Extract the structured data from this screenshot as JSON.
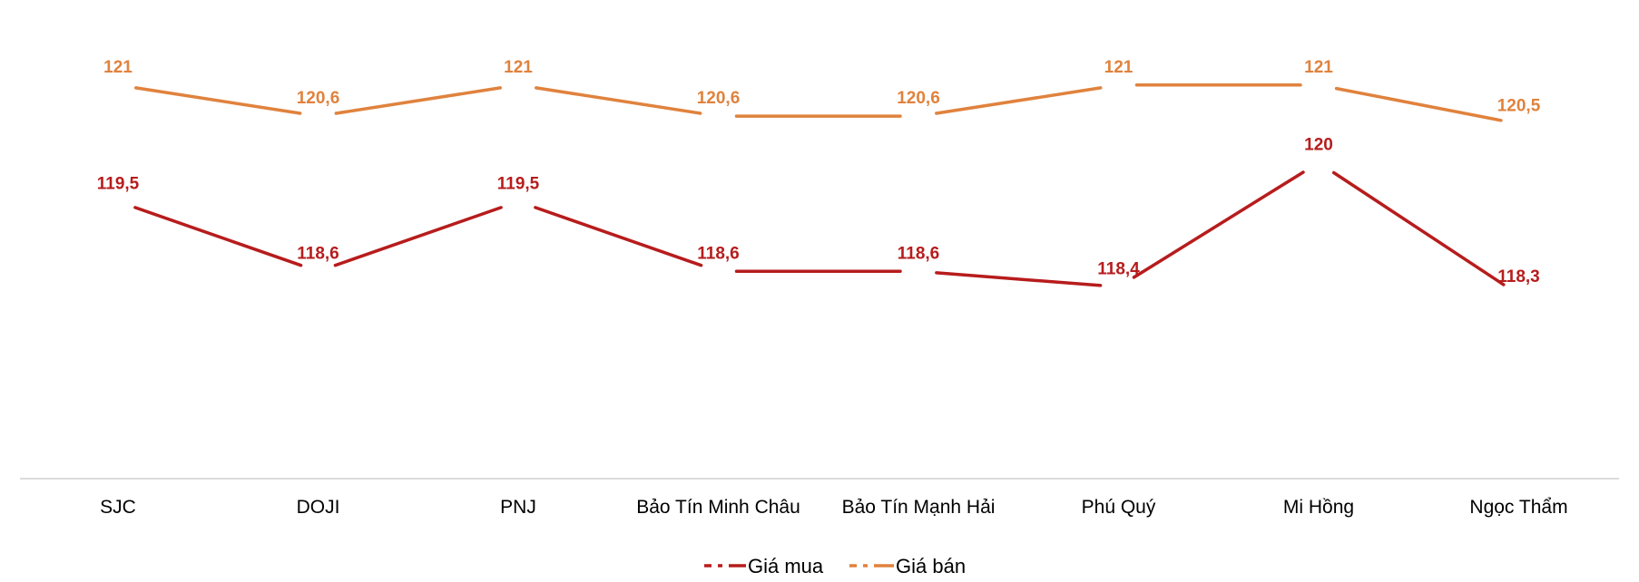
{
  "chart_data": {
    "type": "line",
    "title": "",
    "xlabel": "",
    "ylabel": "",
    "ylim": [
      116,
      121.5
    ],
    "grid": false,
    "legend_position": "bottom",
    "categories": [
      "SJC",
      "DOJI",
      "PNJ",
      "Bảo Tín Minh Châu",
      "Bảo Tín Mạnh Hải",
      "Phú Quý",
      "Mi Hồng",
      "Ngọc Thẩm"
    ],
    "series": [
      {
        "name": "Giá mua",
        "color": "#b71c1c",
        "values": [
          119.5,
          118.6,
          119.5,
          118.6,
          118.6,
          118.4,
          120,
          118.3
        ],
        "labels": [
          "119,5",
          "118,6",
          "119,5",
          "118,6",
          "118,6",
          "118,4",
          "120",
          "118,3"
        ]
      },
      {
        "name": "Giá bán",
        "color": "#e0823d",
        "values": [
          121,
          120.6,
          121,
          120.6,
          120.6,
          121,
          121,
          120.5
        ],
        "labels": [
          "121",
          "120,6",
          "121",
          "120,6",
          "120,6",
          "121",
          "121",
          "120,5"
        ]
      }
    ]
  }
}
